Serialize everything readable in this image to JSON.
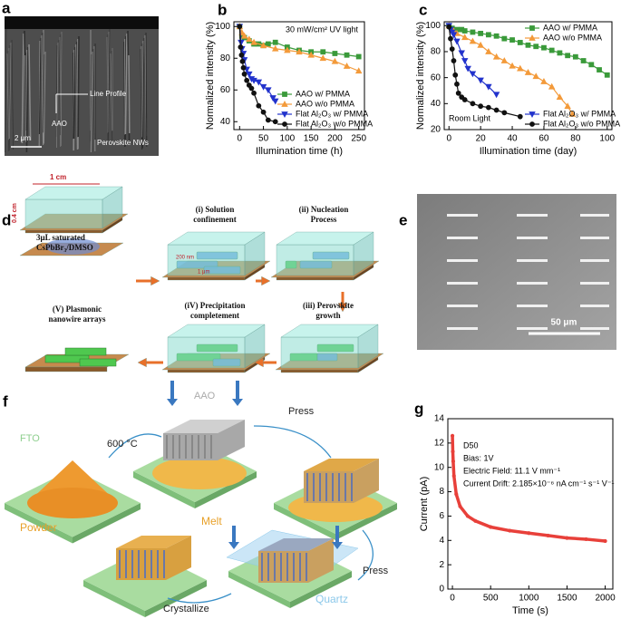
{
  "panels": {
    "a": {
      "label": "a",
      "line_profile": "Line Profile",
      "aao": "AAO",
      "nws": "Perovskite NWs",
      "scale": "2 μm"
    },
    "d": {
      "label": "d",
      "width": "1 cm",
      "height": "0.4 cm",
      "source": [
        "3μL saturated",
        "CsPbBr₃/DMSO"
      ],
      "pore": "200 nm",
      "length": "1 μm",
      "steps": [
        [
          "(i) Solution",
          "confinement"
        ],
        [
          "(ii) Nucleation",
          "Process"
        ],
        [
          "(iii) Perovskite",
          "growth"
        ],
        [
          "(iV) Precipitation",
          "completement"
        ],
        [
          "(V) Plasmonic",
          "nanowire arrays"
        ]
      ]
    },
    "e": {
      "label": "e",
      "scale": "50 μm"
    },
    "f": {
      "label": "f",
      "fto": "FTO",
      "temp": "600 °C",
      "aao": "AAO",
      "press1": "Press",
      "powder": "Powder",
      "melt": "Melt",
      "press2": "Press",
      "quartz": "Quartz",
      "crystallize": "Crystallize"
    }
  },
  "chart_data": [
    {
      "type": "line",
      "label": "b",
      "xlabel": "Illumination time (h)",
      "ylabel": "Normalized intensity (%)",
      "annotations": [
        "30 mW/cm² UV light"
      ],
      "xlim": [
        -12,
        262
      ],
      "ylim": [
        35,
        103
      ],
      "xticks": [
        0,
        50,
        100,
        150,
        200,
        250
      ],
      "yticks": [
        40,
        60,
        80,
        100
      ],
      "legend": "lower right",
      "series": [
        {
          "name": "AAO w/ PMMA",
          "color": "#3a9a3a",
          "marker": "square",
          "x": [
            0,
            5,
            10,
            20,
            30,
            40,
            50,
            60,
            75,
            100,
            125,
            150,
            175,
            200,
            225,
            250
          ],
          "values": [
            100,
            94,
            93,
            91,
            89,
            89,
            88,
            89,
            90,
            87,
            85,
            84,
            84,
            83,
            82,
            81
          ]
        },
        {
          "name": "AAO w/o PMMA",
          "color": "#f39a3a",
          "marker": "triangle",
          "x": [
            0,
            5,
            10,
            20,
            30,
            50,
            75,
            100,
            125,
            150,
            175,
            200,
            225,
            250
          ],
          "values": [
            100,
            96,
            94,
            92,
            90,
            88,
            86,
            85,
            84,
            82,
            80,
            78,
            75,
            72
          ]
        },
        {
          "name": "Flat Al₂O₃ w/ PMMA",
          "color": "#2233cc",
          "marker": "triangle-down",
          "x": [
            0,
            3,
            5,
            8,
            10,
            15,
            20,
            25,
            30,
            40,
            50,
            60,
            70,
            75
          ],
          "values": [
            100,
            90,
            86,
            83,
            79,
            73,
            70,
            67,
            66,
            65,
            62,
            60,
            55,
            53
          ]
        },
        {
          "name": "Flat Al₂O₃ w/o PMMA",
          "color": "#111111",
          "marker": "circle",
          "x": [
            0,
            2,
            4,
            6,
            8,
            10,
            15,
            20,
            25,
            30,
            40,
            50,
            60,
            75
          ],
          "values": [
            100,
            87,
            82,
            78,
            74,
            70,
            66,
            63,
            61,
            58,
            50,
            46,
            41,
            40
          ]
        }
      ]
    },
    {
      "type": "line",
      "label": "c",
      "xlabel": "Illumination time (day)",
      "ylabel": "Normalized intensity (%)",
      "annotations": [
        "Room Light"
      ],
      "xlim": [
        -3,
        103
      ],
      "ylim": [
        20,
        103
      ],
      "xticks": [
        0,
        20,
        40,
        60,
        80,
        100
      ],
      "yticks": [
        20,
        40,
        60,
        80,
        100
      ],
      "series": [
        {
          "name": "AAO w/ PMMA",
          "color": "#3a9a3a",
          "marker": "square",
          "legend": "upper right",
          "x": [
            0,
            2,
            5,
            8,
            10,
            15,
            20,
            25,
            30,
            35,
            40,
            45,
            50,
            55,
            60,
            65,
            70,
            75,
            80,
            85,
            90,
            95,
            100
          ],
          "values": [
            100,
            98,
            97,
            97,
            96,
            95,
            94,
            93,
            92,
            90,
            89,
            87,
            85,
            84,
            83,
            81,
            79,
            77,
            76,
            73,
            70,
            66,
            62
          ]
        },
        {
          "name": "AAO w/o PMMA",
          "color": "#f39a3a",
          "marker": "triangle",
          "legend": "upper right",
          "x": [
            0,
            3,
            5,
            10,
            15,
            20,
            25,
            30,
            35,
            40,
            45,
            50,
            55,
            60,
            65,
            70,
            75,
            78
          ],
          "values": [
            100,
            96,
            94,
            91,
            88,
            85,
            80,
            76,
            73,
            69,
            67,
            64,
            61,
            57,
            53,
            45,
            38,
            32
          ]
        },
        {
          "name": "Flat Al₂O₃ w/ PMMA",
          "color": "#2233cc",
          "marker": "triangle-down",
          "legend": "lower right",
          "x": [
            0,
            1,
            2,
            3,
            5,
            8,
            10,
            12,
            15,
            20,
            25,
            30
          ],
          "values": [
            100,
            97,
            95,
            93,
            88,
            79,
            73,
            67,
            63,
            58,
            53,
            47
          ]
        },
        {
          "name": "Flat Al₂O₃ w/o PMMA",
          "color": "#111111",
          "marker": "circle",
          "legend": "lower right",
          "x": [
            0,
            1,
            2,
            3,
            4,
            5,
            6,
            8,
            10,
            15,
            20,
            25,
            30,
            35,
            45
          ],
          "values": [
            99,
            90,
            82,
            73,
            62,
            55,
            48,
            45,
            43,
            40,
            38,
            37,
            35,
            33,
            30
          ]
        }
      ]
    },
    {
      "type": "line",
      "label": "g",
      "xlabel": "Time (s)",
      "ylabel": "Current (pA)",
      "annotations": [
        "D50",
        "Bias: 1V",
        "Electric Field: 11.1 V mm⁻¹",
        "Current Drift: 2.185×10⁻⁶ nA cm⁻¹ s⁻¹ V⁻¹"
      ],
      "xlim": [
        -60,
        2100
      ],
      "ylim": [
        0,
        14
      ],
      "xticks": [
        0,
        500,
        1000,
        1500,
        2000
      ],
      "yticks": [
        0,
        2,
        4,
        6,
        8,
        10,
        12,
        14
      ],
      "series": [
        {
          "color": "#e8403a",
          "marker": "circle",
          "x": [
            0,
            5,
            10,
            20,
            50,
            100,
            200,
            300,
            500,
            750,
            1000,
            1250,
            1500,
            1750,
            2000
          ],
          "values": [
            12.6,
            11.3,
            10.5,
            9.3,
            7.8,
            6.8,
            6.0,
            5.6,
            5.1,
            4.8,
            4.6,
            4.4,
            4.2,
            4.1,
            3.95
          ]
        }
      ]
    }
  ]
}
